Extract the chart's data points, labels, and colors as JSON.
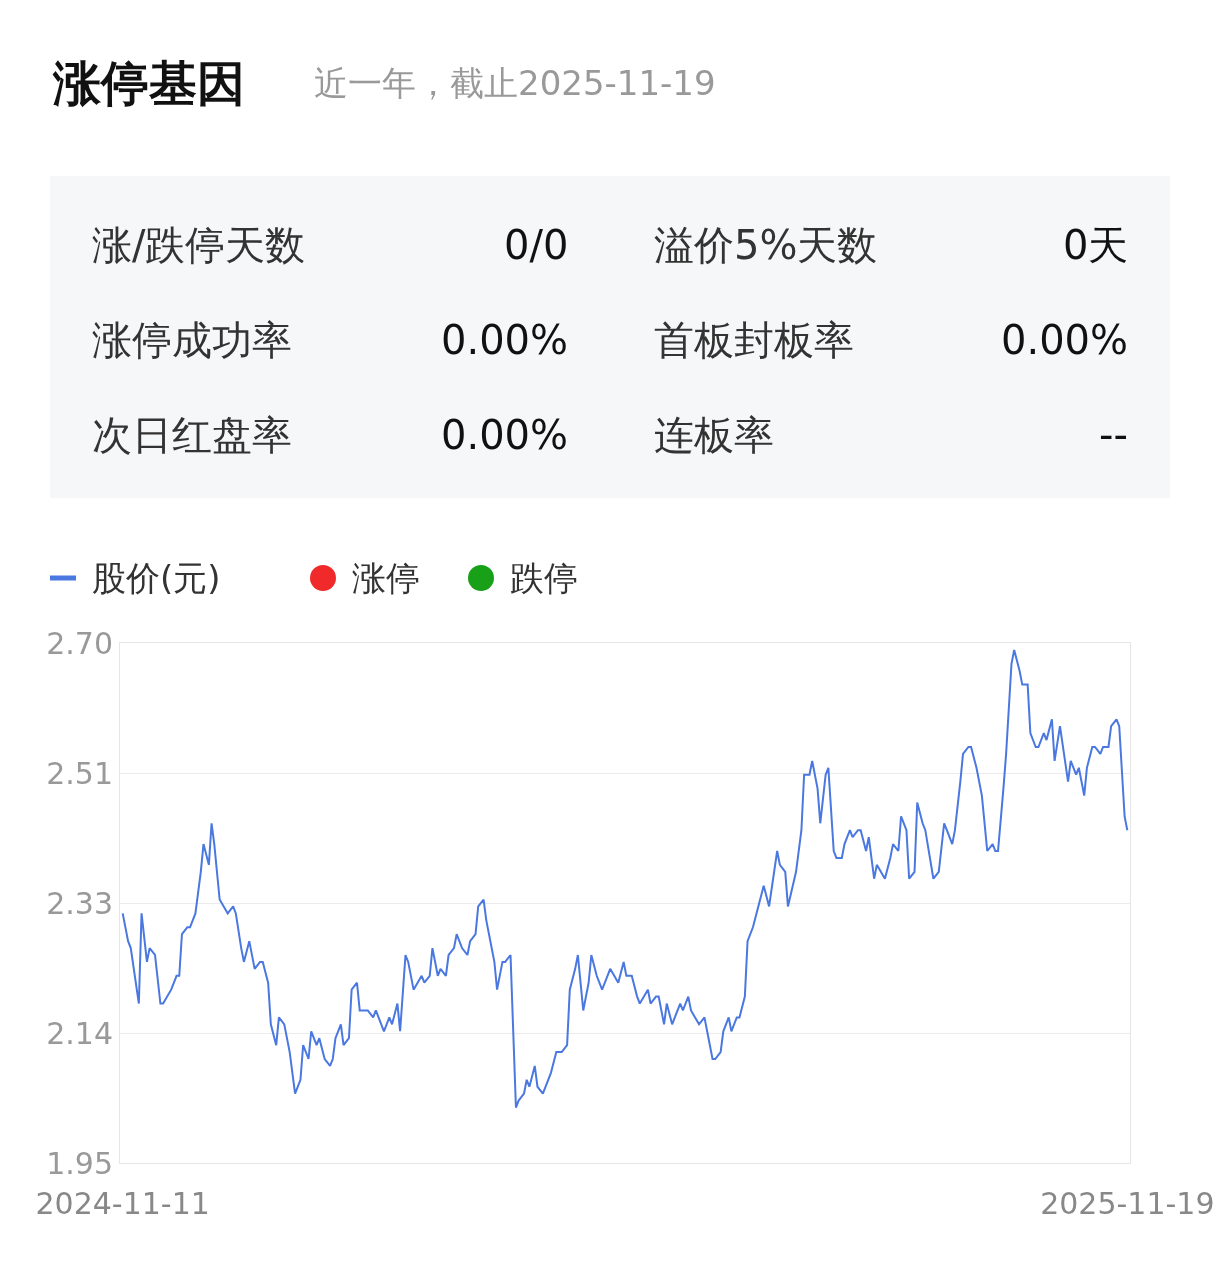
{
  "chart_data": [
    {
      "type": "other",
      "title": "涨停基因",
      "subtitle": "近一年，截止2025-11-19",
      "annotations": [
        "涨/跌停天数",
        "0/0",
        "溢价5%天数",
        "0天",
        "涨停成功率",
        "0.00%",
        "首板封板率",
        "0.00%",
        "次日红盘率",
        "0.00%",
        "连板率",
        "--"
      ]
    },
    {
      "type": "line",
      "legend": "top left",
      "grid": "y",
      "marker": "none",
      "line_style": "solid",
      "xlim": [
        "2024-11-10",
        "2025-11-20"
      ],
      "xticks": [
        {
          "value": "2024-11-11",
          "label": "2024-11-11"
        },
        {
          "value": "2025-11-19",
          "label": "2025-11-19"
        }
      ],
      "ylim": [
        1.95,
        2.7
      ],
      "yticks": [
        {
          "value": 1.95,
          "label": "1.95"
        },
        {
          "value": 2.1375,
          "label": "2.14"
        },
        {
          "value": 2.325,
          "label": "2.33"
        },
        {
          "value": 2.5125,
          "label": "2.51"
        },
        {
          "value": 2.7,
          "label": "2.70"
        }
      ],
      "series": [
        {
          "name": "股价(元)",
          "type": "line",
          "color": "#4a78e0",
          "x": [
            "2024-11-11",
            "2024-11-13",
            "2024-11-14",
            "2024-11-17",
            "2024-11-18",
            "2024-11-20",
            "2024-11-21",
            "2024-11-23",
            "2024-11-25",
            "2024-11-26",
            "2024-11-29",
            "2024-12-01",
            "2024-12-02",
            "2024-12-03",
            "2024-12-05",
            "2024-12-06",
            "2024-12-08",
            "2024-12-10",
            "2024-12-11",
            "2024-12-13",
            "2024-12-14",
            "2024-12-15",
            "2024-12-17",
            "2024-12-20",
            "2024-12-22",
            "2024-12-23",
            "2024-12-25",
            "2024-12-26",
            "2024-12-28",
            "2024-12-30",
            "2025-01-01",
            "2025-01-02",
            "2025-01-04",
            "2025-01-05",
            "2025-01-07",
            "2025-01-08",
            "2025-01-10",
            "2025-01-12",
            "2025-01-14",
            "2025-01-16",
            "2025-01-17",
            "2025-01-19",
            "2025-01-20",
            "2025-01-22",
            "2025-01-23",
            "2025-01-25",
            "2025-01-27",
            "2025-01-28",
            "2025-01-29",
            "2025-01-31",
            "2025-02-01",
            "2025-02-03",
            "2025-02-04",
            "2025-02-06",
            "2025-02-07",
            "2025-02-10",
            "2025-02-12",
            "2025-02-13",
            "2025-02-15",
            "2025-02-16",
            "2025-02-18",
            "2025-02-19",
            "2025-02-21",
            "2025-02-22",
            "2025-02-24",
            "2025-02-25",
            "2025-02-27",
            "2025-03-02",
            "2025-03-03",
            "2025-03-05",
            "2025-03-06",
            "2025-03-08",
            "2025-03-09",
            "2025-03-11",
            "2025-03-12",
            "2025-03-14",
            "2025-03-15",
            "2025-03-17",
            "2025-03-19",
            "2025-03-20",
            "2025-03-22",
            "2025-03-23",
            "2025-03-25",
            "2025-03-26",
            "2025-03-27",
            "2025-03-29",
            "2025-03-30",
            "2025-04-01",
            "2025-04-02",
            "2025-04-04",
            "2025-04-06",
            "2025-04-07",
            "2025-04-09",
            "2025-04-10",
            "2025-04-11",
            "2025-04-13",
            "2025-04-14",
            "2025-04-16",
            "2025-04-18",
            "2025-04-19",
            "2025-04-21",
            "2025-04-23",
            "2025-04-25",
            "2025-04-26",
            "2025-04-28",
            "2025-04-29",
            "2025-05-01",
            "2025-05-03",
            "2025-05-04",
            "2025-05-06",
            "2025-05-08",
            "2025-05-10",
            "2025-05-11",
            "2025-05-14",
            "2025-05-16",
            "2025-05-17",
            "2025-05-19",
            "2025-05-21",
            "2025-05-22",
            "2025-05-25",
            "2025-05-26",
            "2025-05-28",
            "2025-05-29",
            "2025-05-31",
            "2025-06-01",
            "2025-06-03",
            "2025-06-04",
            "2025-06-06",
            "2025-06-07",
            "2025-06-09",
            "2025-06-10",
            "2025-06-13",
            "2025-06-15",
            "2025-06-16",
            "2025-06-18",
            "2025-06-19",
            "2025-06-21",
            "2025-06-22",
            "2025-06-24",
            "2025-06-25",
            "2025-06-27",
            "2025-06-28",
            "2025-06-30",
            "2025-07-01",
            "2025-07-03",
            "2025-07-05",
            "2025-07-07",
            "2025-07-09",
            "2025-07-12",
            "2025-07-13",
            "2025-07-15",
            "2025-07-16",
            "2025-07-19",
            "2025-07-21",
            "2025-07-22",
            "2025-07-24",
            "2025-07-25",
            "2025-07-27",
            "2025-07-28",
            "2025-07-30",
            "2025-07-31",
            "2025-08-02",
            "2025-08-03",
            "2025-08-05",
            "2025-08-06",
            "2025-08-08",
            "2025-08-09",
            "2025-08-11",
            "2025-08-12",
            "2025-08-14",
            "2025-08-15",
            "2025-08-17",
            "2025-08-18",
            "2025-08-21",
            "2025-08-23",
            "2025-08-24",
            "2025-08-26",
            "2025-08-27",
            "2025-08-29",
            "2025-08-30",
            "2025-09-01",
            "2025-09-02",
            "2025-09-04",
            "2025-09-05",
            "2025-09-08",
            "2025-09-10",
            "2025-09-12",
            "2025-09-13",
            "2025-09-15",
            "2025-09-16",
            "2025-09-18",
            "2025-09-19",
            "2025-09-21",
            "2025-09-22",
            "2025-09-24",
            "2025-09-26",
            "2025-09-28",
            "2025-09-30",
            "2025-10-01",
            "2025-10-02",
            "2025-10-04",
            "2025-10-05",
            "2025-10-07",
            "2025-10-08",
            "2025-10-10",
            "2025-10-11",
            "2025-10-13",
            "2025-10-14",
            "2025-10-16",
            "2025-10-17",
            "2025-10-19",
            "2025-10-20",
            "2025-10-22",
            "2025-10-23",
            "2025-10-25",
            "2025-10-28",
            "2025-10-29",
            "2025-10-31",
            "2025-11-01",
            "2025-11-03",
            "2025-11-04",
            "2025-11-06",
            "2025-11-07",
            "2025-11-09",
            "2025-11-10",
            "2025-11-12",
            "2025-11-13",
            "2025-11-15",
            "2025-11-16",
            "2025-11-18",
            "2025-11-19"
          ],
          "values": [
            2.31,
            2.27,
            2.26,
            2.18,
            2.31,
            2.24,
            2.26,
            2.25,
            2.18,
            2.18,
            2.2,
            2.22,
            2.22,
            2.28,
            2.29,
            2.29,
            2.31,
            2.37,
            2.41,
            2.38,
            2.44,
            2.41,
            2.33,
            2.31,
            2.32,
            2.31,
            2.26,
            2.24,
            2.27,
            2.23,
            2.24,
            2.24,
            2.21,
            2.15,
            2.12,
            2.16,
            2.15,
            2.11,
            2.05,
            2.07,
            2.12,
            2.1,
            2.14,
            2.12,
            2.13,
            2.1,
            2.09,
            2.1,
            2.13,
            2.15,
            2.12,
            2.13,
            2.2,
            2.21,
            2.17,
            2.17,
            2.16,
            2.17,
            2.15,
            2.14,
            2.16,
            2.15,
            2.18,
            2.14,
            2.25,
            2.24,
            2.2,
            2.22,
            2.21,
            2.22,
            2.26,
            2.22,
            2.23,
            2.22,
            2.25,
            2.26,
            2.28,
            2.26,
            2.25,
            2.27,
            2.28,
            2.32,
            2.33,
            2.3,
            2.28,
            2.24,
            2.2,
            2.24,
            2.24,
            2.25,
            2.03,
            2.04,
            2.05,
            2.07,
            2.06,
            2.09,
            2.06,
            2.05,
            2.07,
            2.08,
            2.11,
            2.11,
            2.12,
            2.2,
            2.23,
            2.25,
            2.17,
            2.21,
            2.25,
            2.22,
            2.2,
            2.22,
            2.23,
            2.21,
            2.24,
            2.22,
            2.22,
            2.19,
            2.18,
            2.2,
            2.18,
            2.19,
            2.19,
            2.15,
            2.18,
            2.15,
            2.16,
            2.18,
            2.17,
            2.19,
            2.17,
            2.15,
            2.16,
            2.14,
            2.1,
            2.1,
            2.11,
            2.14,
            2.16,
            2.14,
            2.16,
            2.16,
            2.19,
            2.27,
            2.29,
            2.32,
            2.35,
            2.32,
            2.4,
            2.38,
            2.37,
            2.32,
            2.37,
            2.43,
            2.51,
            2.51,
            2.53,
            2.49,
            2.44,
            2.51,
            2.52,
            2.4,
            2.39,
            2.39,
            2.41,
            2.43,
            2.42,
            2.43,
            2.43,
            2.4,
            2.42,
            2.36,
            2.38,
            2.36,
            2.39,
            2.41,
            2.4,
            2.45,
            2.43,
            2.36,
            2.37,
            2.47,
            2.44,
            2.43,
            2.36,
            2.37,
            2.44,
            2.43,
            2.41,
            2.43,
            2.5,
            2.54,
            2.55,
            2.55,
            2.52,
            2.48,
            2.4,
            2.41,
            2.4,
            2.4,
            2.49,
            2.54,
            2.67,
            2.69,
            2.66,
            2.64,
            2.64,
            2.57,
            2.55,
            2.55,
            2.57,
            2.56,
            2.59,
            2.53,
            2.58,
            2.5,
            2.53,
            2.51,
            2.52,
            2.48,
            2.52,
            2.55,
            2.55,
            2.54,
            2.55,
            2.55,
            2.58,
            2.59,
            2.58,
            2.45,
            2.43
          ]
        },
        {
          "name": "涨停",
          "type": "scatter",
          "marker": "circle",
          "color": "#f02a2a"
        },
        {
          "name": "跌停",
          "type": "scatter",
          "marker": "circle",
          "color": "#18a018"
        }
      ]
    }
  ]
}
